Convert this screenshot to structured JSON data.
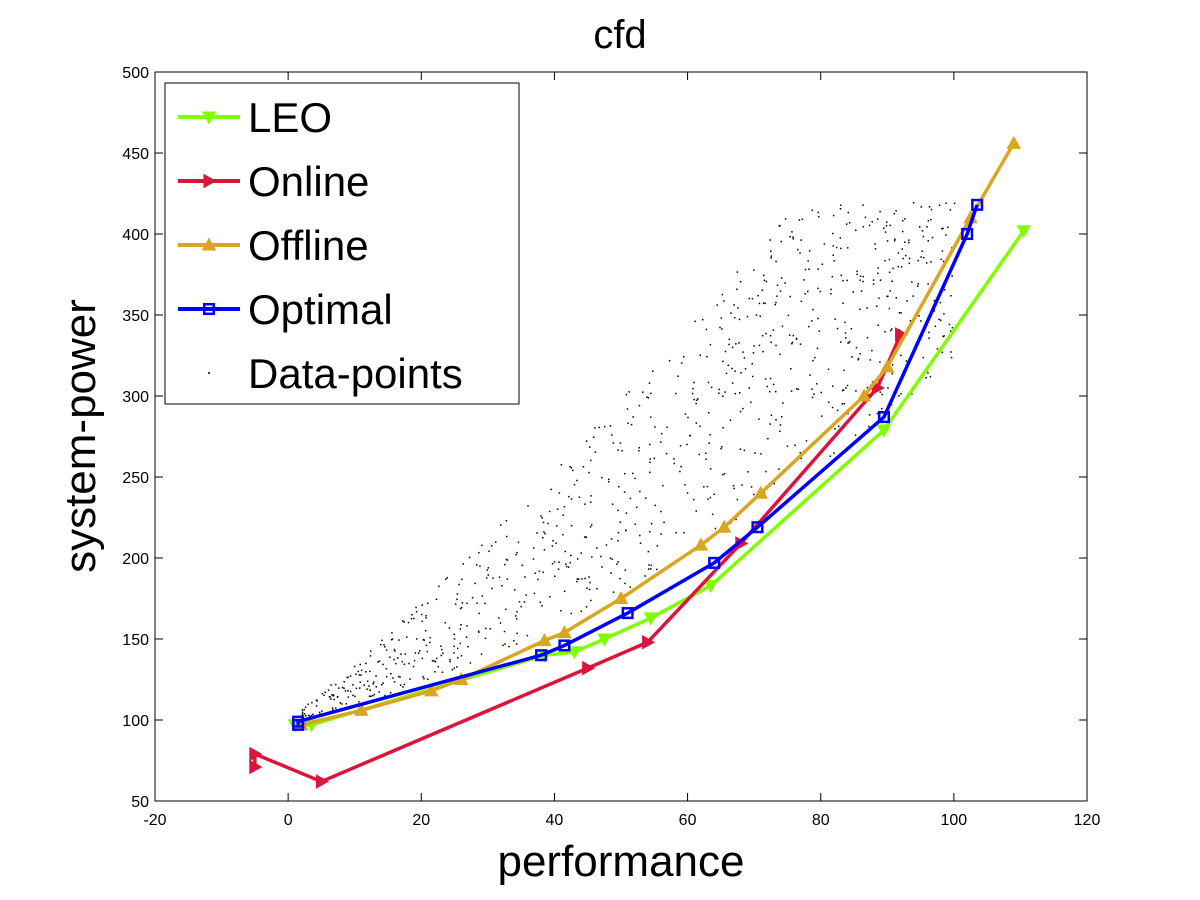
{
  "chart_data": {
    "type": "line",
    "title": "cfd",
    "xlabel": "performance",
    "ylabel": "system-power",
    "xlim": [
      -20,
      120
    ],
    "ylim": [
      50,
      500
    ],
    "xticks": [
      -20,
      0,
      20,
      40,
      60,
      80,
      100,
      120
    ],
    "yticks": [
      50,
      100,
      150,
      200,
      250,
      300,
      350,
      400,
      450,
      500
    ],
    "xtick_labels": [
      "-20",
      "0",
      "20",
      "40",
      "60",
      "80",
      "100",
      "120"
    ],
    "ytick_labels": [
      "50",
      "100",
      "150",
      "200",
      "250",
      "300",
      "350",
      "400",
      "450",
      "500"
    ],
    "grid": false,
    "legend_position": "top-left",
    "series": [
      {
        "name": "LEO",
        "color": "#80ff00",
        "marker": "triangle-down",
        "x": [
          1,
          3.5,
          38.5,
          43,
          47.5,
          54.5,
          63.5,
          89.5,
          110.5
        ],
        "y": [
          97,
          97,
          140,
          142,
          150,
          163,
          183,
          279,
          402
        ]
      },
      {
        "name": "Online",
        "color": "#dc143c",
        "marker": "triangle-right",
        "x": [
          -5,
          -5,
          5,
          45,
          54,
          68,
          88.5,
          92
        ],
        "y": [
          71,
          79,
          62,
          132,
          148,
          209,
          305,
          338
        ]
      },
      {
        "name": "Offline",
        "color": "#daa520",
        "marker": "triangle-up",
        "x": [
          2,
          11,
          21.5,
          26,
          38.5,
          41.5,
          50,
          62,
          65.5,
          71,
          86.5,
          90,
          102.5,
          109
        ],
        "y": [
          97,
          106,
          118,
          125,
          149,
          154,
          175,
          208,
          219,
          240,
          300,
          318,
          410,
          456
        ]
      },
      {
        "name": "Optimal",
        "color": "#0000ff",
        "marker": "square",
        "x": [
          1.5,
          1.5,
          38,
          41.5,
          51,
          64,
          70.5,
          89.5,
          102,
          103.5
        ],
        "y": [
          97,
          99,
          140,
          146,
          166,
          197,
          219,
          287,
          400,
          418
        ]
      },
      {
        "name": "Data-points",
        "color": "#000000",
        "marker": "dot",
        "description_seed": 7,
        "count": 900,
        "x_range": [
          2,
          100
        ],
        "y_range": [
          95,
          420
        ]
      }
    ]
  }
}
